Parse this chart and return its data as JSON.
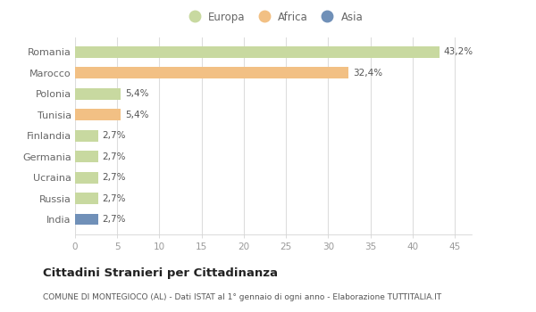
{
  "countries": [
    "Romania",
    "Marocco",
    "Polonia",
    "Tunisia",
    "Finlandia",
    "Germania",
    "Ucraina",
    "Russia",
    "India"
  ],
  "values": [
    43.2,
    32.4,
    5.4,
    5.4,
    2.7,
    2.7,
    2.7,
    2.7,
    2.7
  ],
  "labels": [
    "43,2%",
    "32,4%",
    "5,4%",
    "5,4%",
    "2,7%",
    "2,7%",
    "2,7%",
    "2,7%",
    "2,7%"
  ],
  "colors": [
    "#c8d9a0",
    "#f2c084",
    "#c8d9a0",
    "#f2c084",
    "#c8d9a0",
    "#c8d9a0",
    "#c8d9a0",
    "#c8d9a0",
    "#7090b8"
  ],
  "legend": [
    {
      "label": "Europa",
      "color": "#c8d9a0"
    },
    {
      "label": "Africa",
      "color": "#f2c084"
    },
    {
      "label": "Asia",
      "color": "#7090b8"
    }
  ],
  "xlim": [
    0,
    47
  ],
  "xticks": [
    0,
    5,
    10,
    15,
    20,
    25,
    30,
    35,
    40,
    45
  ],
  "title": "Cittadini Stranieri per Cittadinanza",
  "subtitle": "COMUNE DI MONTEGIOCO (AL) - Dati ISTAT al 1° gennaio di ogni anno - Elaborazione TUTTITALIA.IT",
  "bg_color": "#ffffff",
  "bar_height": 0.55
}
